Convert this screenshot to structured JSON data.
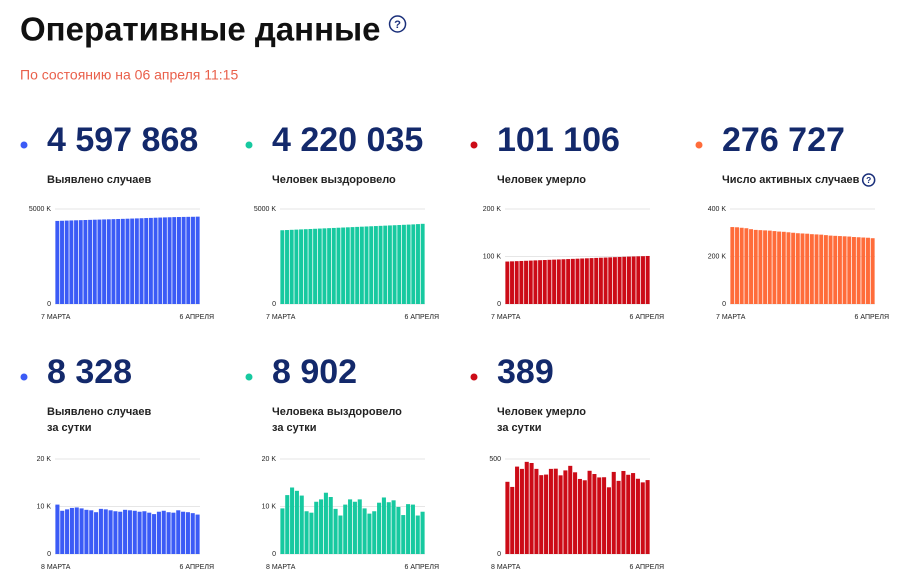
{
  "header": {
    "title": "Оперативные данные",
    "help_icon": "?",
    "subtitle": "По состоянию на 06 апреля 11:15"
  },
  "cards": [
    {
      "color": "#3b5bf6",
      "number": "4 597 868",
      "label": [
        "Выявлено случаев"
      ],
      "chart": {
        "type": "bar",
        "color": "#3b5bf6",
        "ylim": [
          0,
          5000
        ],
        "yticks": [
          0,
          {
            "value": 5000,
            "label": "5000 K"
          }
        ],
        "categories": [
          "7 МАРТА",
          null,
          null,
          null,
          null,
          null,
          null,
          null,
          null,
          null,
          null,
          null,
          null,
          null,
          null,
          null,
          null,
          null,
          null,
          null,
          null,
          null,
          null,
          null,
          null,
          null,
          null,
          null,
          null,
          null,
          "6 АПРЕЛЯ"
        ],
        "values": [
          4372,
          4381,
          4390,
          4398,
          4406,
          4413,
          4421,
          4428,
          4436,
          4443,
          4451,
          4458,
          4466,
          4473,
          4481,
          4489,
          4497,
          4505,
          4514,
          4523,
          4532,
          4541,
          4550,
          4558,
          4566,
          4573,
          4578,
          4583,
          4587,
          4590,
          4598
        ]
      }
    },
    {
      "color": "#17c9a0",
      "number": "4 220 035",
      "label": [
        "Человек выздоровело"
      ],
      "chart": {
        "type": "bar",
        "color": "#17c9a0",
        "ylim": [
          0,
          5000
        ],
        "yticks": [
          0,
          {
            "value": 5000,
            "label": "5000 K"
          }
        ],
        "categories": [
          "7 МАРТА",
          null,
          null,
          null,
          null,
          null,
          null,
          null,
          null,
          null,
          null,
          null,
          null,
          null,
          null,
          null,
          null,
          null,
          null,
          null,
          null,
          null,
          null,
          null,
          null,
          null,
          null,
          null,
          null,
          null,
          "6 АПРЕЛЯ"
        ],
        "values": [
          3882,
          3893,
          3904,
          3915,
          3926,
          3937,
          3948,
          3959,
          3970,
          3981,
          3992,
          4003,
          4014,
          4025,
          4036,
          4047,
          4058,
          4069,
          4080,
          4091,
          4102,
          4113,
          4124,
          4135,
          4146,
          4157,
          4168,
          4179,
          4190,
          4205,
          4220
        ]
      }
    },
    {
      "color": "#cc0b17",
      "number": "101 106",
      "label": [
        "Человек умерло"
      ],
      "chart": {
        "type": "bar",
        "color": "#cc0b17",
        "ylim": [
          0,
          200
        ],
        "yticks": [
          0,
          {
            "value": 100,
            "label": "100 K"
          },
          {
            "value": 200,
            "label": "200 K"
          }
        ],
        "categories": [
          "7 МАРТА",
          null,
          null,
          null,
          null,
          null,
          null,
          null,
          null,
          null,
          null,
          null,
          null,
          null,
          null,
          null,
          null,
          null,
          null,
          null,
          null,
          null,
          null,
          null,
          null,
          null,
          null,
          null,
          null,
          null,
          "6 АПРЕЛЯ"
        ],
        "values": [
          89.4,
          89.8,
          90.2,
          90.6,
          91.0,
          91.4,
          91.8,
          92.2,
          92.6,
          93.0,
          93.4,
          93.8,
          94.2,
          94.6,
          95.0,
          95.4,
          95.8,
          96.2,
          96.6,
          97.0,
          97.4,
          97.8,
          98.2,
          98.6,
          99.0,
          99.4,
          99.8,
          100.1,
          100.4,
          100.7,
          101.1
        ]
      }
    },
    {
      "color": "#ff6c3a",
      "number": "276 727",
      "label": [
        "Число активных случаев"
      ],
      "help_icon": "?",
      "chart": {
        "type": "bar",
        "color": "#ff6c3a",
        "ylim": [
          0,
          400
        ],
        "yticks": [
          0,
          {
            "value": 200,
            "label": "200 K"
          },
          {
            "value": 400,
            "label": "400 K"
          }
        ],
        "categories": [
          "7 МАРТА",
          null,
          null,
          null,
          null,
          null,
          null,
          null,
          null,
          null,
          null,
          null,
          null,
          null,
          null,
          null,
          null,
          null,
          null,
          null,
          null,
          null,
          null,
          null,
          null,
          null,
          null,
          null,
          null,
          null,
          "6 АПРЕЛЯ"
        ],
        "values": [
          324,
          323,
          321,
          319,
          315,
          312,
          311,
          310,
          309,
          307,
          305,
          304,
          302,
          300,
          298,
          297,
          296,
          294,
          293,
          292,
          290,
          288,
          287,
          286,
          285,
          284,
          282,
          281,
          280,
          279,
          277
        ]
      }
    },
    {
      "color": "#3b5bf6",
      "number": "8 328",
      "label": [
        "Выявлено случаев",
        "за сутки"
      ],
      "chart": {
        "type": "bar",
        "color": "#3b5bf6",
        "ylim": [
          0,
          20
        ],
        "yticks": [
          0,
          {
            "value": 10,
            "label": "10 K"
          },
          {
            "value": 20,
            "label": "20 K"
          }
        ],
        "categories": [
          "8 МАРТА",
          null,
          null,
          null,
          null,
          null,
          null,
          null,
          null,
          null,
          null,
          null,
          null,
          null,
          null,
          null,
          null,
          null,
          null,
          null,
          null,
          null,
          null,
          null,
          null,
          null,
          null,
          null,
          null,
          "6 АПРЕЛЯ"
        ],
        "values": [
          10.4,
          9.1,
          9.4,
          9.7,
          9.8,
          9.6,
          9.3,
          9.2,
          8.8,
          9.5,
          9.4,
          9.2,
          9.0,
          8.9,
          9.3,
          9.2,
          9.1,
          8.9,
          9.0,
          8.7,
          8.4,
          8.9,
          9.1,
          8.8,
          8.7,
          9.2,
          8.9,
          8.8,
          8.6,
          8.3
        ]
      }
    },
    {
      "color": "#17c9a0",
      "number": "8 902",
      "label": [
        "Человека выздоровело",
        "за сутки"
      ],
      "chart": {
        "type": "bar",
        "color": "#17c9a0",
        "ylim": [
          0,
          20
        ],
        "yticks": [
          0,
          {
            "value": 10,
            "label": "10 K"
          },
          {
            "value": 20,
            "label": "20 K"
          }
        ],
        "categories": [
          "8 МАРТА",
          null,
          null,
          null,
          null,
          null,
          null,
          null,
          null,
          null,
          null,
          null,
          null,
          null,
          null,
          null,
          null,
          null,
          null,
          null,
          null,
          null,
          null,
          null,
          null,
          null,
          null,
          null,
          null,
          "6 АПРЕЛЯ"
        ],
        "values": [
          9.6,
          12.4,
          14.0,
          13.3,
          12.3,
          9.0,
          8.7,
          11.0,
          11.5,
          12.9,
          12.0,
          9.5,
          8.1,
          10.4,
          11.5,
          11.0,
          11.5,
          9.6,
          8.5,
          9.0,
          10.8,
          11.9,
          10.9,
          11.3,
          9.9,
          8.2,
          10.5,
          10.4,
          8.1,
          8.9
        ]
      }
    },
    {
      "color": "#cc0b17",
      "number": "389",
      "label": [
        "Человек умерло",
        "за сутки"
      ],
      "chart": {
        "type": "bar",
        "color": "#cc0b17",
        "ylim": [
          0,
          500
        ],
        "yticks": [
          0,
          500
        ],
        "categories": [
          "8 МАРТА",
          null,
          null,
          null,
          null,
          null,
          null,
          null,
          null,
          null,
          null,
          null,
          null,
          null,
          null,
          null,
          null,
          null,
          null,
          null,
          null,
          null,
          null,
          null,
          null,
          null,
          null,
          null,
          null,
          "6 АПРЕЛЯ"
        ],
        "values": [
          380,
          353,
          460,
          448,
          485,
          479,
          448,
          415,
          418,
          448,
          449,
          414,
          440,
          464,
          430,
          395,
          388,
          438,
          421,
          403,
          404,
          351,
          432,
          385,
          437,
          417,
          426,
          396,
          377,
          389
        ]
      }
    }
  ]
}
